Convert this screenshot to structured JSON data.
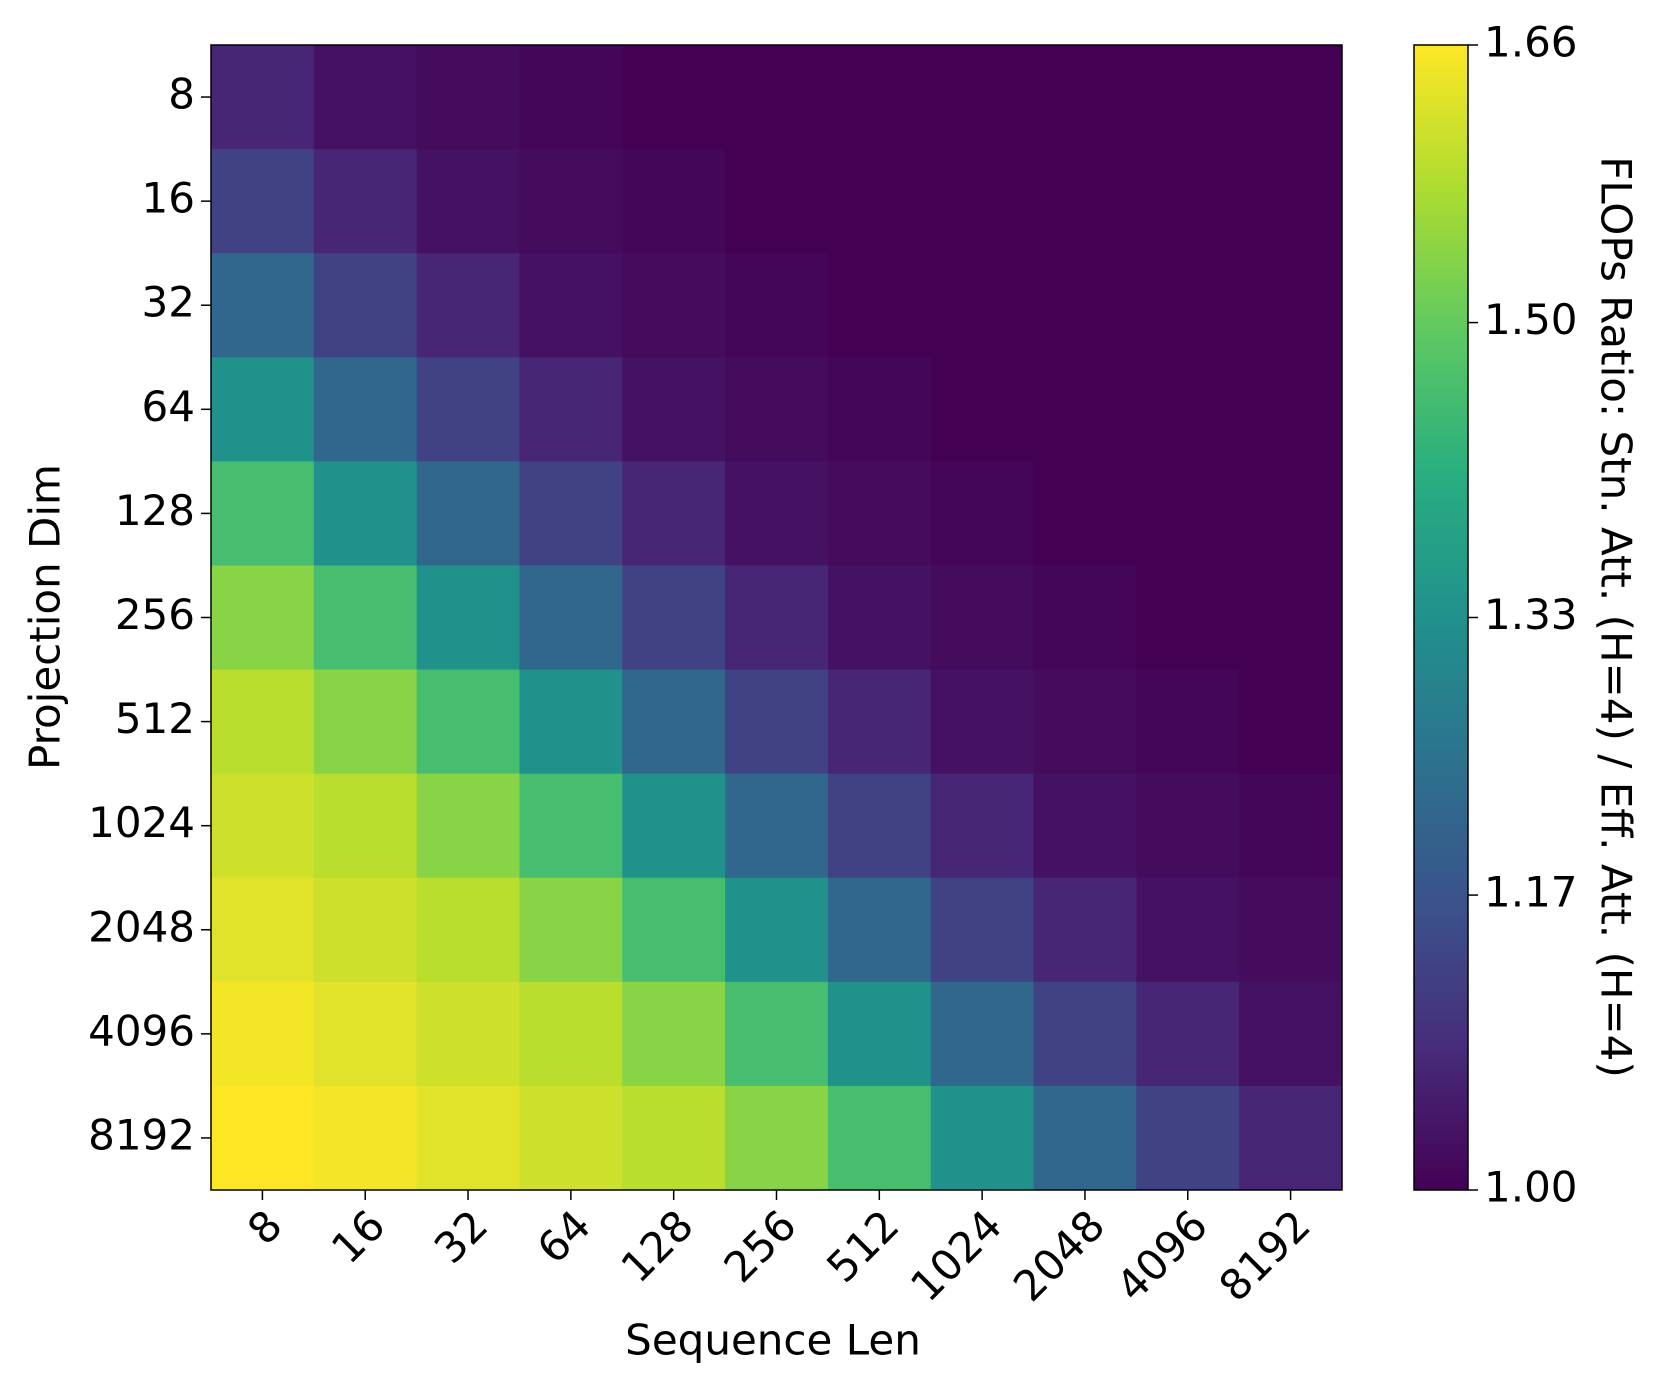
{
  "chart_data": {
    "type": "heatmap",
    "xlabel": "Sequence Len",
    "ylabel": "Projection Dim",
    "x_categories": [
      "8",
      "16",
      "32",
      "64",
      "128",
      "256",
      "512",
      "1024",
      "2048",
      "4096",
      "8192"
    ],
    "y_categories": [
      "8",
      "16",
      "32",
      "64",
      "128",
      "256",
      "512",
      "1024",
      "2048",
      "4096",
      "8192"
    ],
    "values": [
      [
        1.07,
        1.03,
        1.02,
        1.01,
        1.0,
        1.0,
        1.0,
        1.0,
        1.0,
        1.0,
        1.0
      ],
      [
        1.13,
        1.07,
        1.03,
        1.02,
        1.01,
        1.0,
        1.0,
        1.0,
        1.0,
        1.0,
        1.0
      ],
      [
        1.22,
        1.13,
        1.07,
        1.03,
        1.02,
        1.01,
        1.0,
        1.0,
        1.0,
        1.0,
        1.0
      ],
      [
        1.33,
        1.22,
        1.13,
        1.07,
        1.03,
        1.02,
        1.01,
        1.0,
        1.0,
        1.0,
        1.0
      ],
      [
        1.46,
        1.33,
        1.22,
        1.13,
        1.07,
        1.03,
        1.02,
        1.01,
        1.0,
        1.0,
        1.0
      ],
      [
        1.54,
        1.46,
        1.33,
        1.22,
        1.13,
        1.07,
        1.03,
        1.02,
        1.01,
        1.0,
        1.0
      ],
      [
        1.59,
        1.54,
        1.46,
        1.33,
        1.22,
        1.13,
        1.07,
        1.03,
        1.02,
        1.01,
        1.0
      ],
      [
        1.61,
        1.59,
        1.54,
        1.46,
        1.33,
        1.22,
        1.13,
        1.07,
        1.03,
        1.02,
        1.01
      ],
      [
        1.63,
        1.61,
        1.59,
        1.54,
        1.46,
        1.33,
        1.22,
        1.13,
        1.07,
        1.03,
        1.02
      ],
      [
        1.65,
        1.63,
        1.61,
        1.59,
        1.54,
        1.46,
        1.33,
        1.22,
        1.13,
        1.07,
        1.03
      ],
      [
        1.66,
        1.65,
        1.63,
        1.61,
        1.59,
        1.54,
        1.46,
        1.33,
        1.22,
        1.13,
        1.07
      ]
    ],
    "colormap": "viridis",
    "colorbar": {
      "label": "FLOPs Ratio: Stn. Att. (H=4) / Eff. Att. (H=4)",
      "lim": [
        1.0,
        1.66
      ],
      "ticks": [
        {
          "value": 1.0,
          "label": "1.00"
        },
        1.17,
        1.33,
        {
          "value": 1.5,
          "label": "1.50"
        },
        1.66
      ]
    }
  }
}
